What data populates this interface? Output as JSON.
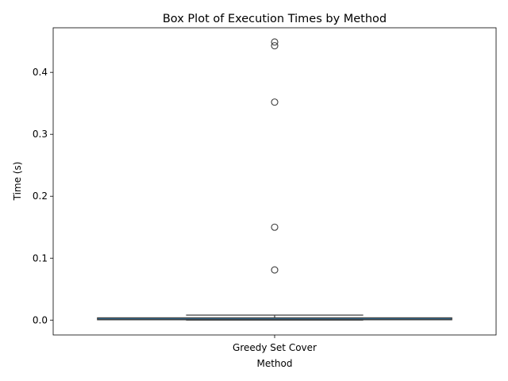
{
  "chart_data": {
    "type": "box",
    "title": "Box Plot of Execution Times by Method",
    "xlabel": "Method",
    "ylabel": "Time (s)",
    "categories": [
      "Greedy Set Cover"
    ],
    "ylim": [
      -0.024,
      0.472
    ],
    "yticks": [
      0.0,
      0.1,
      0.2,
      0.3,
      0.4
    ],
    "ytick_labels": [
      "0.0",
      "0.1",
      "0.2",
      "0.3",
      "0.4"
    ],
    "grid": false,
    "series": [
      {
        "category": "Greedy Set Cover",
        "whisker_low": 0.0,
        "q1": 0.0005,
        "median": 0.001,
        "q3": 0.003,
        "whisker_high": 0.008,
        "outliers": [
          0.449,
          0.443,
          0.352,
          0.15,
          0.081
        ],
        "box_color": "#3274a1"
      }
    ]
  }
}
